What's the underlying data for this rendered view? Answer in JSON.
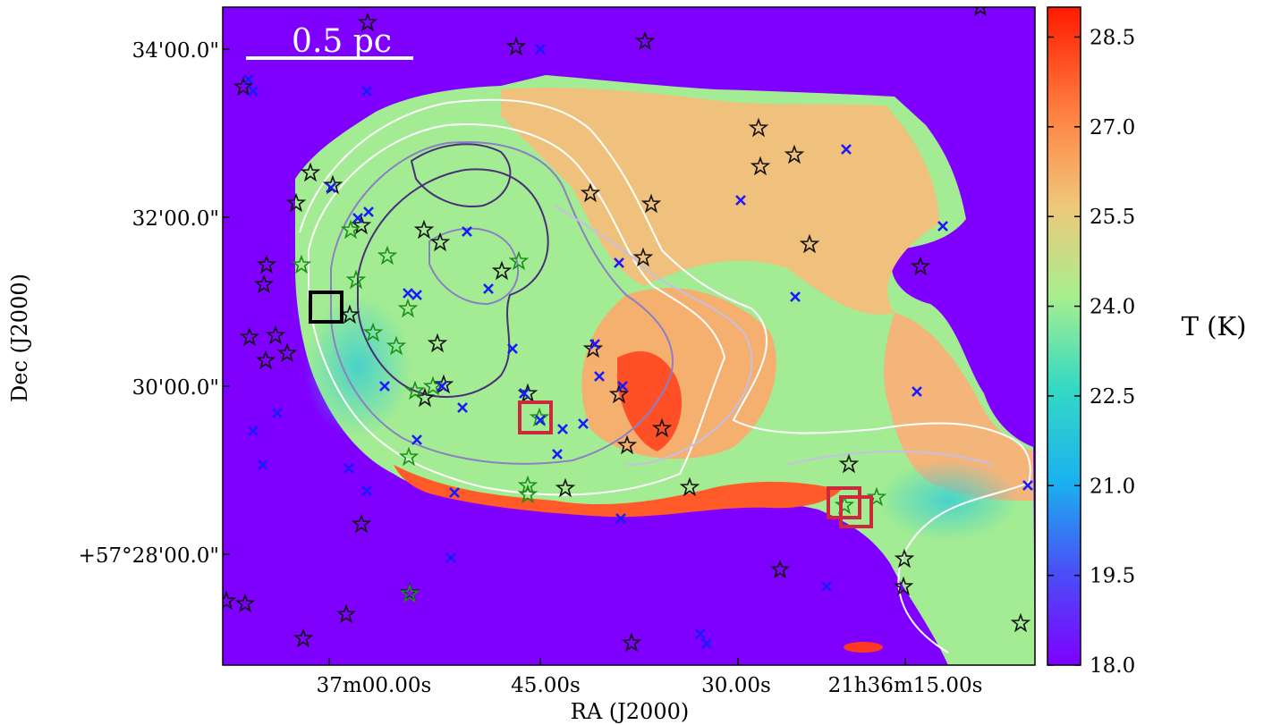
{
  "chart_data": {
    "type": "heatmap",
    "description_units": "Temperature map of a nebula in sky coordinates",
    "title": "",
    "xlabel": "RA (J2000)",
    "ylabel": "Dec (J2000)",
    "x_ticks": [
      "37m00.00s",
      "45.00s",
      "30.00s",
      "21h36m15.00s"
    ],
    "y_ticks": [
      "34'00.0\"",
      "32'00.0\"",
      "30'00.0\"",
      "+57°28'00.0\""
    ],
    "colorbar": {
      "label": "T (K)",
      "min": 18.0,
      "max": 29.0,
      "ticks": [
        "28.5",
        "27.0",
        "25.5",
        "24.0",
        "22.5",
        "21.0",
        "19.5",
        "18.0"
      ],
      "colors": [
        "#ff1a00",
        "#ff8040",
        "#f0c77a",
        "#a7ef8e",
        "#33d9c4",
        "#1ab2ef",
        "#4a4ef7",
        "#7f00ff"
      ]
    },
    "scale_bar": {
      "label": "0.5 pc"
    },
    "markers": {
      "black_stars": "many stars (outlined black)",
      "green_stars": "stars outlined green",
      "blue_crosses": "x markers",
      "black_box_count": 1,
      "red_box_count": 3
    },
    "grid": false
  },
  "colors": {
    "background_field": "#7f00ff",
    "contour_white": "#ffffff",
    "contour_dark": "#4a2f7a",
    "contour_mid": "#8c80c4",
    "contour_light": "#c4bfe3",
    "star_black": "#111111",
    "star_green": "#1a8f1a",
    "cross_blue": "#1a1aff",
    "box_red": "#cc2a3a",
    "box_black": "#000000"
  }
}
